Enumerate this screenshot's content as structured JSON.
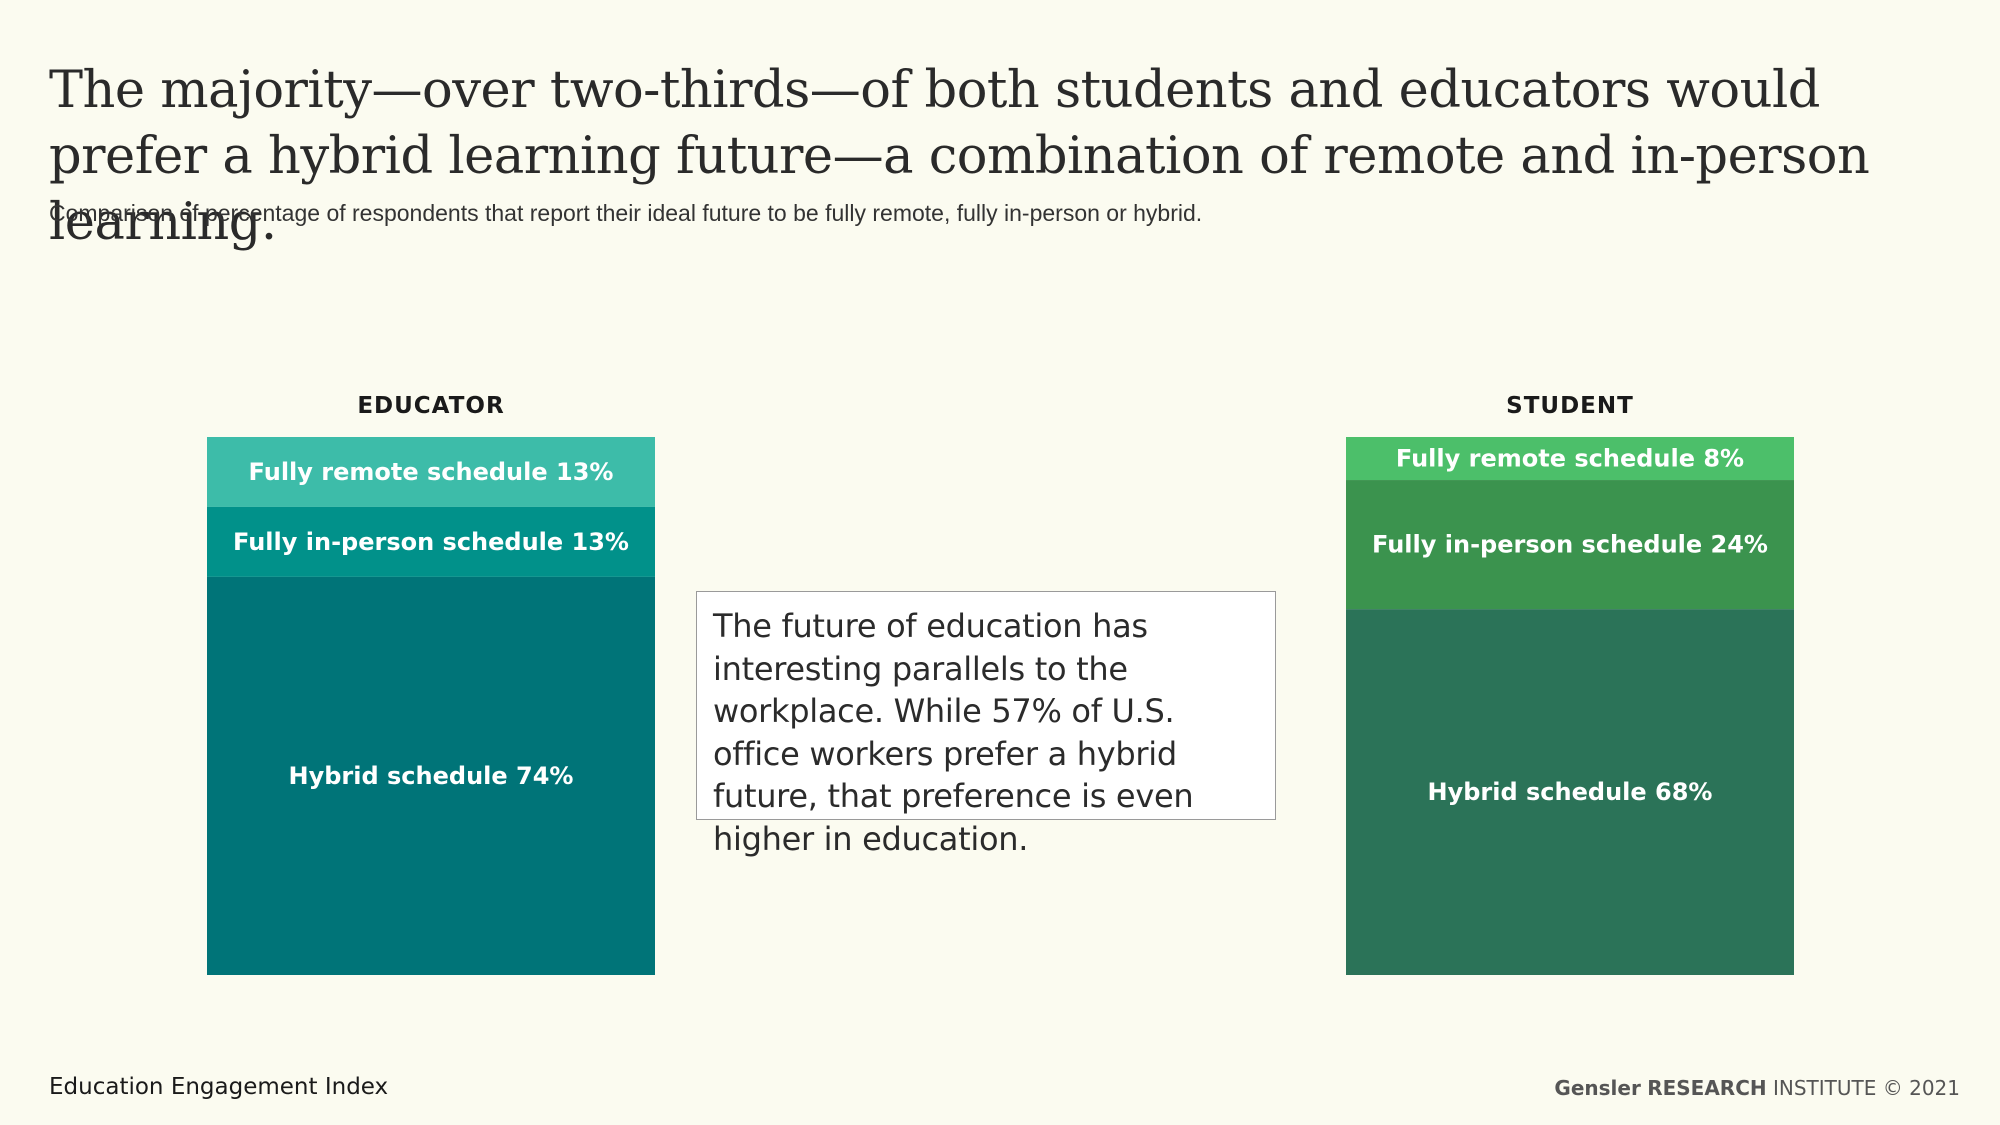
{
  "headline": "The majority—over two-thirds—of both students and educators would prefer a hybrid learning future—a combination of remote and in-person learning.",
  "subtitle": "Comparison of percentage of respondents that report their ideal future to be fully remote, fully in-person or hybrid.",
  "callout": "The future of education has interesting parallels to the workplace. While 57% of U.S. office workers prefer a hybrid future, that preference is even higher in education.",
  "footer": {
    "left": "Education Engagement Index",
    "brand": "Gensler",
    "research": "RESEARCH",
    "institute": "INSTITUTE",
    "copyright": "© 2021"
  },
  "chart_data": {
    "type": "bar",
    "stacked": true,
    "normalized_to": 100,
    "categories": [
      "EDUCATOR",
      "STUDENT"
    ],
    "series": [
      {
        "name": "Fully remote schedule",
        "values": [
          13,
          8
        ],
        "labels": [
          "Fully remote schedule 13%",
          "Fully remote schedule 8%"
        ],
        "colors": [
          "#3dbca9",
          "#4cbf6a"
        ]
      },
      {
        "name": "Fully in-person schedule",
        "values": [
          13,
          24
        ],
        "labels": [
          "Fully in-person schedule 13%",
          "Fully in-person schedule 24%"
        ],
        "colors": [
          "#01918a",
          "#3b934e"
        ]
      },
      {
        "name": "Hybrid schedule",
        "values": [
          74,
          68
        ],
        "labels": [
          "Hybrid schedule 74%",
          "Hybrid schedule 68%"
        ],
        "colors": [
          "#007478",
          "#2b7358"
        ]
      }
    ]
  }
}
